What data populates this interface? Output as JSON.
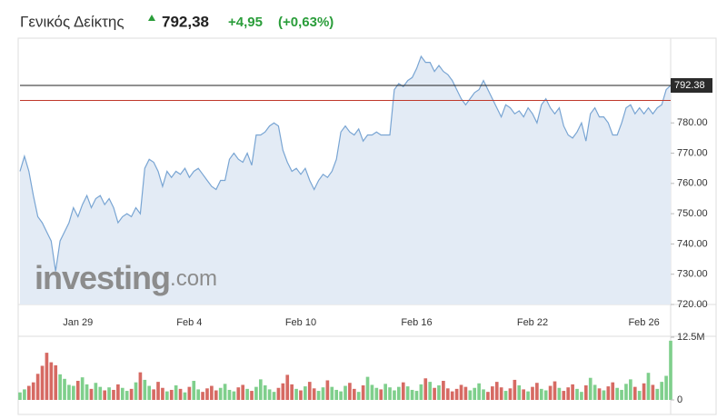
{
  "header": {
    "title": "Γενικός Δείκτης",
    "price": "792,38",
    "change": "+4,95",
    "change_pct": "(+0,63%)"
  },
  "chart_data": [
    {
      "type": "area",
      "color": "#79a5d3",
      "fill_color": "#e3ebf5",
      "categories": [
        null,
        null,
        null,
        null,
        null,
        null,
        null,
        null,
        null,
        null,
        null,
        null,
        null,
        "Jan 29",
        null,
        null,
        null,
        null,
        null,
        null,
        null,
        null,
        null,
        null,
        null,
        null,
        null,
        null,
        null,
        null,
        null,
        null,
        null,
        null,
        null,
        null,
        null,
        null,
        "Feb 4",
        null,
        null,
        null,
        null,
        null,
        null,
        null,
        null,
        null,
        null,
        null,
        null,
        null,
        null,
        null,
        null,
        null,
        null,
        null,
        null,
        null,
        null,
        null,
        null,
        "Feb 10",
        null,
        null,
        null,
        null,
        null,
        null,
        null,
        null,
        null,
        null,
        null,
        null,
        null,
        null,
        null,
        null,
        null,
        null,
        null,
        null,
        null,
        null,
        null,
        null,
        null,
        "Feb 16",
        null,
        null,
        null,
        null,
        null,
        null,
        null,
        null,
        null,
        null,
        null,
        null,
        null,
        null,
        null,
        null,
        null,
        null,
        null,
        null,
        null,
        null,
        null,
        null,
        null,
        "Feb 22",
        null,
        null,
        null,
        null,
        null,
        null,
        null,
        null,
        null,
        null,
        null,
        null,
        null,
        null,
        null,
        null,
        null,
        null,
        null,
        null,
        null,
        null,
        null,
        null,
        "Feb 26",
        null,
        null,
        null,
        null,
        null,
        null
      ],
      "values": [
        764,
        769,
        764,
        756,
        749,
        747,
        744,
        741,
        731,
        741,
        744,
        747,
        752,
        749,
        753,
        756,
        752,
        755,
        756,
        753,
        755,
        752,
        747,
        749,
        750,
        749,
        752,
        750,
        765,
        768,
        767,
        764,
        759,
        764,
        762,
        764,
        763,
        765,
        762,
        764,
        765,
        763,
        761,
        759,
        758,
        761,
        761,
        768,
        770,
        768,
        767,
        770,
        766,
        776,
        776,
        777,
        779,
        780,
        779,
        771,
        767,
        764,
        765,
        763,
        765,
        761,
        758,
        761,
        763,
        762,
        764,
        768,
        777,
        779,
        777,
        776,
        778,
        774,
        776,
        776,
        777,
        776,
        776,
        776,
        791,
        793,
        792,
        794,
        795,
        798,
        802,
        800,
        800,
        797,
        799,
        797,
        796,
        794,
        791,
        788,
        786,
        788,
        790,
        791,
        794,
        791,
        788,
        785,
        782,
        786,
        785,
        783,
        784,
        782,
        785,
        783,
        780,
        786,
        788,
        785,
        783,
        785,
        779,
        776,
        775,
        777,
        780,
        774,
        783,
        785,
        782,
        782,
        780,
        776,
        776,
        780,
        785,
        786,
        783,
        785,
        783,
        785,
        783,
        785,
        786,
        791,
        792.38
      ],
      "ylim": [
        720,
        808
      ],
      "yticks": [
        {
          "value": 720,
          "label": "720.00"
        },
        {
          "value": 730,
          "label": "730.00"
        },
        {
          "value": 740,
          "label": "740.00"
        },
        {
          "value": 750,
          "label": "750.00"
        },
        {
          "value": 760,
          "label": "760.00"
        },
        {
          "value": 770,
          "label": "770.00"
        },
        {
          "value": 780,
          "label": "780.00"
        }
      ],
      "last_price": {
        "value": 792.38,
        "label": "792.38"
      },
      "reference_line": {
        "value": 787.43,
        "color": "#c0392b"
      },
      "watermark_brand": "investing",
      "watermark_suffix": ".com"
    },
    {
      "type": "bar",
      "up_color": "#7fcf8c",
      "down_color": "#d66a63",
      "values": [
        1500000,
        2100000,
        2800000,
        3500000,
        5200000,
        6800000,
        9400000,
        7500000,
        6900000,
        5100000,
        4200000,
        3000000,
        2800000,
        3800000,
        4500000,
        3100000,
        2200000,
        3400000,
        2600000,
        1900000,
        2500000,
        2000000,
        3100000,
        2400000,
        1800000,
        2200000,
        3500000,
        5500000,
        4000000,
        2800000,
        2100000,
        3600000,
        2400000,
        1700000,
        2000000,
        2900000,
        2200000,
        1500000,
        2600000,
        3800000,
        2100000,
        1600000,
        2300000,
        2800000,
        1900000,
        2400000,
        3200000,
        2000000,
        1700000,
        2500000,
        3000000,
        2200000,
        1800000,
        2600000,
        4100000,
        2900000,
        2100000,
        1600000,
        2400000,
        3300000,
        5000000,
        3100000,
        2200000,
        1900000,
        2700000,
        3600000,
        2300000,
        1800000,
        2500000,
        3900000,
        2600000,
        2000000,
        1700000,
        2800000,
        3400000,
        2200000,
        1600000,
        2900000,
        4600000,
        3000000,
        2400000,
        2100000,
        3200000,
        2500000,
        1900000,
        2600000,
        3500000,
        2700000,
        2000000,
        1800000,
        3100000,
        4300000,
        3600000,
        2400000,
        2900000,
        3800000,
        2300000,
        1700000,
        2200000,
        3000000,
        2600000,
        1900000,
        2400000,
        3300000,
        2100000,
        1600000,
        2700000,
        3600000,
        2500000,
        1800000,
        2300000,
        4000000,
        2900000,
        2100000,
        1700000,
        2600000,
        3400000,
        2200000,
        1900000,
        2800000,
        3700000,
        2400000,
        1800000,
        2500000,
        3100000,
        2200000,
        1600000,
        2900000,
        4400000,
        3000000,
        2300000,
        1900000,
        2700000,
        3500000,
        2400000,
        2000000,
        3200000,
        4100000,
        2600000,
        1800000,
        3300000,
        5400000,
        3000000,
        2200000,
        3600000,
        4800000,
        11800000
      ],
      "ylim": [
        0,
        12500000
      ],
      "yticks": [
        {
          "value": 12500000,
          "label": "12.5M"
        },
        0
      ]
    }
  ]
}
